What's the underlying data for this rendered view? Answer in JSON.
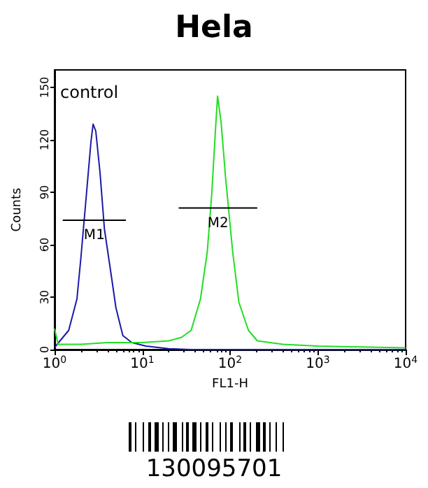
{
  "chart_data": {
    "type": "line",
    "title": "Hela",
    "xlabel": "FL1-H",
    "ylabel": "Counts",
    "log": "x",
    "grid": false,
    "marker": "none",
    "xlim": [
      1,
      10000
    ],
    "xticks": [
      {
        "value": 1,
        "label": "10$^{0}$"
      },
      {
        "value": 10,
        "label": "10$^{1}$"
      },
      {
        "value": 100,
        "label": "10$^{2}$"
      },
      {
        "value": 1000,
        "label": "10$^{3}$"
      },
      {
        "value": 10000,
        "label": "10$^{4}$"
      }
    ],
    "ylim": [
      0,
      160
    ],
    "yticks": [
      0,
      30,
      60,
      90,
      120,
      150
    ],
    "series": [
      {
        "color": "#1a1aa8",
        "x": [
          1,
          1.07,
          1.45,
          1.8,
          2.0,
          2.3,
          2.6,
          2.75,
          2.95,
          3.3,
          3.7,
          4.5,
          5.0,
          6.0,
          7.6,
          11,
          20,
          36,
          100,
          1000,
          10000
        ],
        "values": [
          1,
          3,
          11,
          29,
          53,
          88,
          119,
          129,
          125,
          101,
          69,
          40,
          24,
          8,
          4,
          2,
          0.5,
          0,
          0,
          0,
          0
        ]
      },
      {
        "color": "#22dd22",
        "x": [
          1,
          1.1,
          2,
          4,
          10,
          20,
          28,
          36,
          46,
          55,
          62,
          68,
          72,
          79,
          89,
          107,
          126,
          162,
          204,
          400,
          1000,
          3000,
          10000
        ],
        "values": [
          12,
          3,
          3,
          4,
          4,
          5,
          7,
          11,
          29,
          56,
          90,
          125,
          145,
          130,
          98,
          56,
          27,
          11,
          5,
          3,
          2,
          1.5,
          1
        ]
      },
      {
        "name": "M1",
        "color": "#000000",
        "x": [
          1.24,
          6.5
        ],
        "values": [
          74,
          74
        ]
      },
      {
        "name": "M2",
        "color": "#000000",
        "x": [
          26,
          204
        ],
        "values": [
          81,
          81
        ]
      }
    ],
    "annotations": [
      "control",
      "130095701"
    ]
  }
}
